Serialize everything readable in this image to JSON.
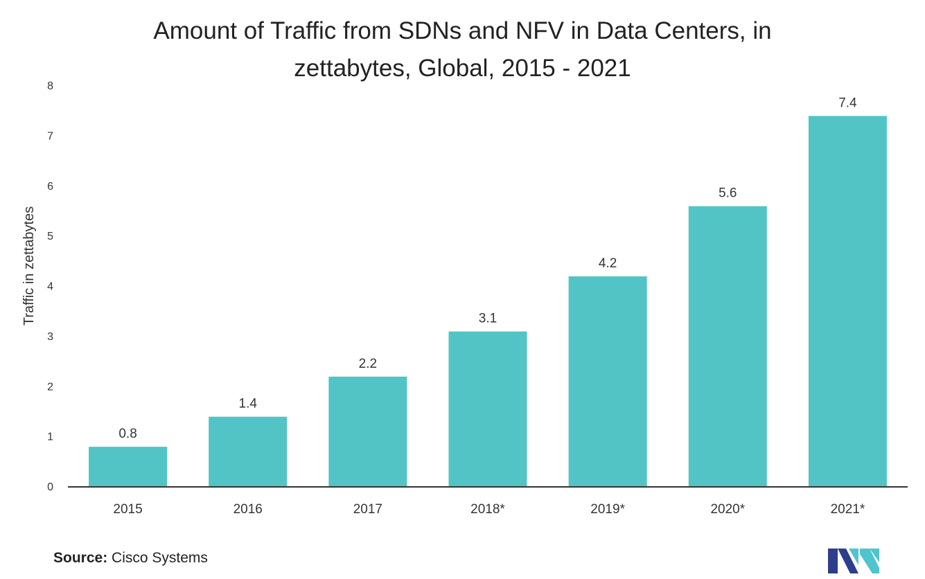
{
  "chart_data": {
    "type": "bar",
    "title_lines": [
      "Amount of Traffic from SDNs and NFV in Data Centers, in",
      "zettabytes, Global, 2015 - 2021"
    ],
    "ylabel": "Traffic in zettabytes",
    "xlabel": "",
    "categories": [
      "2015",
      "2016",
      "2017",
      "2018*",
      "2019*",
      "2020*",
      "2021*"
    ],
    "values": [
      0.8,
      1.4,
      2.2,
      3.1,
      4.2,
      5.6,
      7.4
    ],
    "data_labels": [
      "0.8",
      "1.4",
      "2.2",
      "3.1",
      "4.2",
      "5.6",
      "7.4"
    ],
    "ylim": [
      0,
      8
    ],
    "yticks": [
      0,
      1,
      2,
      3,
      4,
      5,
      6,
      7,
      8
    ],
    "grid": false,
    "bar_color": "#52C4C6",
    "axis_color": "#333333"
  },
  "source": {
    "label": "Source:",
    "text": "Cisco Systems"
  },
  "logo": {
    "icon": "mordor-intelligence-logo-icon",
    "colors": [
      "#2E3E8C",
      "#4FC4CF"
    ]
  }
}
